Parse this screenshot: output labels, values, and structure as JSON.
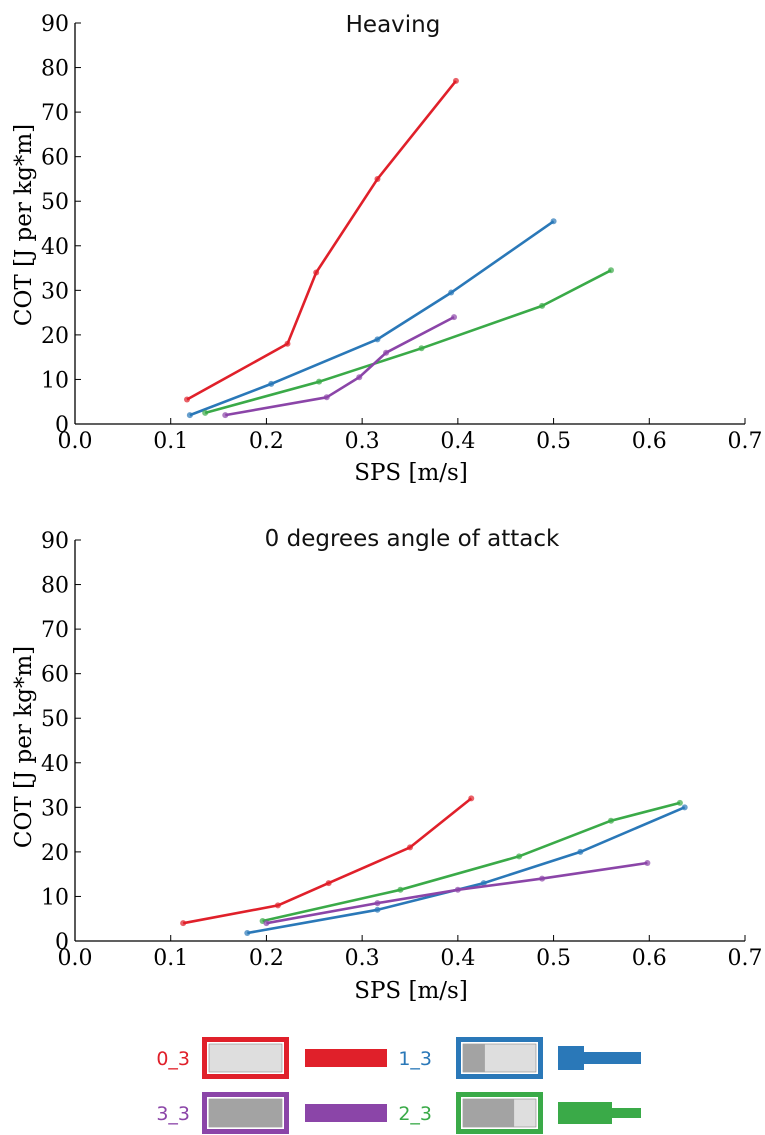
{
  "chart_data": [
    {
      "type": "line",
      "title": "Heaving",
      "xlabel": "SPS [m/s]",
      "ylabel": "COT [J per kg*m]",
      "xlim": [
        0.0,
        0.7
      ],
      "ylim": [
        0,
        90
      ],
      "xticks": [
        "0.0",
        "0.1",
        "0.2",
        "0.3",
        "0.4",
        "0.5",
        "0.6",
        "0.7"
      ],
      "yticks": [
        "0",
        "10",
        "20",
        "30",
        "40",
        "50",
        "60",
        "70",
        "80",
        "90"
      ],
      "grid": false,
      "series": [
        {
          "name": "0_3",
          "color": "#e0202a",
          "x": [
            0.117,
            0.222,
            0.252,
            0.316,
            0.398
          ],
          "y": [
            5.5,
            18,
            34,
            55,
            77
          ]
        },
        {
          "name": "1_3",
          "color": "#2a78b8",
          "x": [
            0.12,
            0.205,
            0.316,
            0.393,
            0.5
          ],
          "y": [
            2,
            9,
            19,
            29.5,
            45.5
          ]
        },
        {
          "name": "2_3",
          "color": "#3aaa48",
          "x": [
            0.136,
            0.255,
            0.362,
            0.488,
            0.56
          ],
          "y": [
            2.5,
            9.5,
            17,
            26.5,
            34.5
          ]
        },
        {
          "name": "3_3",
          "color": "#8b45a8",
          "x": [
            0.157,
            0.263,
            0.297,
            0.325,
            0.396
          ],
          "y": [
            2,
            6,
            10.5,
            16,
            24
          ]
        }
      ]
    },
    {
      "type": "line",
      "title": "0 degrees angle of attack",
      "xlabel": "SPS [m/s]",
      "ylabel": "COT [J per kg*m]",
      "xlim": [
        0.0,
        0.7
      ],
      "ylim": [
        0,
        90
      ],
      "xticks": [
        "0.0",
        "0.1",
        "0.2",
        "0.3",
        "0.4",
        "0.5",
        "0.6",
        "0.7"
      ],
      "yticks": [
        "0",
        "10",
        "20",
        "30",
        "40",
        "50",
        "60",
        "70",
        "80",
        "90"
      ],
      "grid": false,
      "series": [
        {
          "name": "0_3",
          "color": "#e0202a",
          "x": [
            0.113,
            0.212,
            0.265,
            0.35,
            0.414
          ],
          "y": [
            4,
            8,
            13,
            21,
            32
          ]
        },
        {
          "name": "1_3",
          "color": "#2a78b8",
          "x": [
            0.18,
            0.316,
            0.427,
            0.528,
            0.637
          ],
          "y": [
            1.8,
            7,
            13,
            20,
            30
          ]
        },
        {
          "name": "2_3",
          "color": "#3aaa48",
          "x": [
            0.196,
            0.34,
            0.464,
            0.56,
            0.632
          ],
          "y": [
            4.5,
            11.5,
            19,
            27,
            31
          ]
        },
        {
          "name": "3_3",
          "color": "#8b45a8",
          "x": [
            0.2,
            0.316,
            0.4,
            0.488,
            0.598
          ],
          "y": [
            4,
            8.5,
            11.5,
            14,
            17.5
          ]
        }
      ]
    }
  ],
  "legend": {
    "items": [
      {
        "label": "0_3",
        "color": "#e0202a",
        "fill": 0.0,
        "tail": "uniform"
      },
      {
        "label": "1_3",
        "color": "#2a78b8",
        "fill": 0.3,
        "tail": "stepped-short"
      },
      {
        "label": "3_3",
        "color": "#8b45a8",
        "fill": 1.0,
        "tail": "uniform"
      },
      {
        "label": "2_3",
        "color": "#3aaa48",
        "fill": 0.7,
        "tail": "stepped-long"
      }
    ]
  }
}
